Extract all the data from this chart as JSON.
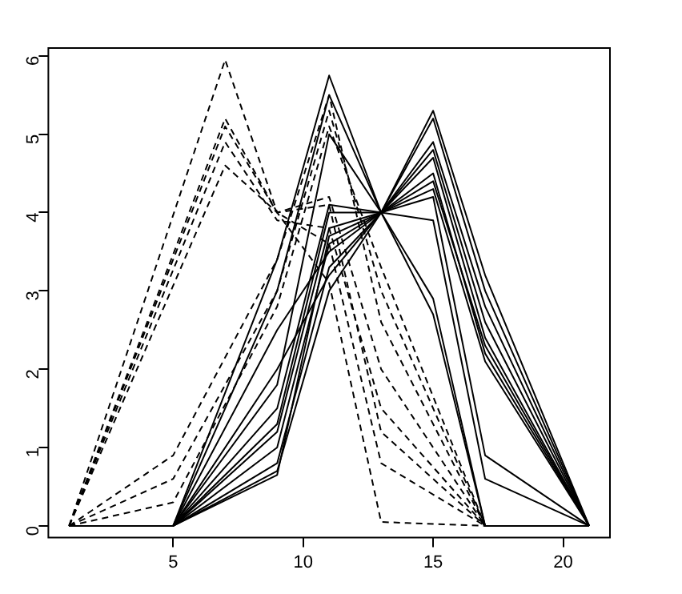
{
  "chart_data": {
    "type": "line",
    "xlim": [
      0.2,
      21.8
    ],
    "xticks": [
      5,
      10,
      15,
      20
    ],
    "ylim": [
      -0.15,
      6.1
    ],
    "yticks": [
      0,
      1,
      2,
      3,
      4,
      5,
      6
    ],
    "grid": false,
    "legend": false,
    "marker": "none",
    "series": [
      {
        "color": "#000000",
        "line_style": "dashed",
        "x": [
          1,
          7,
          9,
          11,
          13,
          17
        ],
        "values": [
          0,
          5.95,
          4,
          3.1,
          0.05,
          0
        ]
      },
      {
        "color": "#000000",
        "line_style": "dashed",
        "x": [
          1,
          7,
          9,
          11,
          13,
          17
        ],
        "values": [
          0,
          5.2,
          4,
          3.6,
          0.8,
          0
        ]
      },
      {
        "color": "#000000",
        "line_style": "dashed",
        "x": [
          1,
          7,
          9,
          11,
          13,
          17
        ],
        "values": [
          0,
          5.1,
          4,
          4.1,
          1.2,
          0
        ]
      },
      {
        "color": "#000000",
        "line_style": "dashed",
        "x": [
          1,
          7,
          9,
          11,
          13,
          17
        ],
        "values": [
          0,
          4.9,
          3.9,
          3.8,
          1.5,
          0
        ]
      },
      {
        "color": "#000000",
        "line_style": "dashed",
        "x": [
          1,
          7,
          9,
          11,
          13,
          17
        ],
        "values": [
          0,
          4.6,
          4,
          4.2,
          2,
          0
        ]
      },
      {
        "color": "#000000",
        "line_style": "dashed",
        "x": [
          1,
          5,
          9,
          11,
          13,
          17
        ],
        "values": [
          0,
          0.9,
          3.4,
          5.5,
          2.6,
          0
        ]
      },
      {
        "color": "#000000",
        "line_style": "dashed",
        "x": [
          1,
          5,
          9,
          11,
          13,
          17
        ],
        "values": [
          0,
          0.6,
          3,
          5.3,
          3,
          0
        ]
      },
      {
        "color": "#000000",
        "line_style": "dashed",
        "x": [
          1,
          5,
          9,
          11,
          13,
          17
        ],
        "values": [
          0,
          0.3,
          2.8,
          5.1,
          3.3,
          0
        ]
      },
      {
        "color": "#000000",
        "line_style": "solid",
        "x": [
          1,
          5,
          9,
          11,
          13,
          15,
          17,
          21
        ],
        "values": [
          0,
          0,
          3.4,
          5.75,
          4,
          5.3,
          3.2,
          0
        ]
      },
      {
        "color": "#000000",
        "line_style": "solid",
        "x": [
          1,
          5,
          9,
          11,
          13,
          15,
          17,
          21
        ],
        "values": [
          0,
          0,
          3,
          5.5,
          4,
          5.2,
          3,
          0
        ]
      },
      {
        "color": "#000000",
        "line_style": "solid",
        "x": [
          1,
          5,
          9,
          11,
          13,
          15,
          17,
          21
        ],
        "values": [
          0,
          0,
          1.8,
          5,
          4,
          4.9,
          2.8,
          0
        ]
      },
      {
        "color": "#000000",
        "line_style": "solid",
        "x": [
          1,
          5,
          9,
          11,
          13,
          15,
          17,
          21
        ],
        "values": [
          0,
          0,
          1.5,
          4.1,
          4,
          4.8,
          2.6,
          0
        ]
      },
      {
        "color": "#000000",
        "line_style": "solid",
        "x": [
          1,
          5,
          9,
          11,
          13,
          15,
          17,
          21
        ],
        "values": [
          0,
          0,
          1.2,
          3.8,
          4,
          4.7,
          2.4,
          0
        ]
      },
      {
        "color": "#000000",
        "line_style": "solid",
        "x": [
          1,
          5,
          9,
          11,
          13,
          15,
          17,
          21
        ],
        "values": [
          0,
          0,
          1,
          3.6,
          4,
          4.5,
          2.2,
          0
        ]
      },
      {
        "color": "#000000",
        "line_style": "solid",
        "x": [
          1,
          5,
          9,
          11,
          13,
          15,
          17,
          21
        ],
        "values": [
          0,
          0,
          0.8,
          3.3,
          4,
          4.4,
          2.3,
          0
        ]
      },
      {
        "color": "#000000",
        "line_style": "solid",
        "x": [
          1,
          5,
          9,
          11,
          13,
          15,
          17,
          21
        ],
        "values": [
          0,
          0,
          0.7,
          3,
          4,
          4.3,
          2.1,
          0
        ]
      },
      {
        "color": "#000000",
        "line_style": "solid",
        "x": [
          1,
          5,
          9,
          11,
          13,
          15,
          17,
          21
        ],
        "values": [
          0,
          0,
          0.65,
          3.7,
          4,
          4.2,
          0.9,
          0
        ]
      },
      {
        "color": "#000000",
        "line_style": "solid",
        "x": [
          1,
          5,
          9,
          11,
          13,
          15,
          17,
          21
        ],
        "values": [
          0,
          0,
          1.3,
          4,
          4,
          3.9,
          0.6,
          0
        ]
      },
      {
        "color": "#000000",
        "line_style": "solid",
        "x": [
          1,
          5,
          9,
          11,
          13,
          15,
          17,
          21
        ],
        "values": [
          0,
          0,
          2.5,
          3.5,
          4,
          2.9,
          0,
          0
        ]
      },
      {
        "color": "#000000",
        "line_style": "solid",
        "x": [
          1,
          5,
          9,
          11,
          13,
          15,
          17,
          21
        ],
        "values": [
          0,
          0,
          2,
          3.2,
          4,
          2.7,
          0,
          0
        ]
      }
    ]
  }
}
